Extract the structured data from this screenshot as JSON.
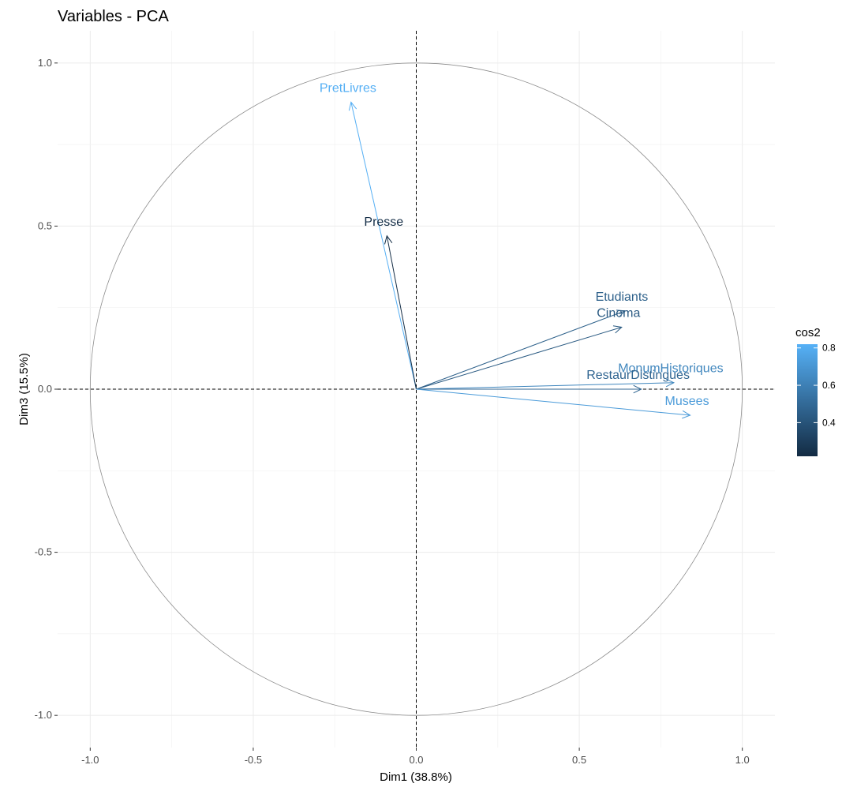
{
  "chart_data": {
    "type": "scatter",
    "title": "Variables - PCA",
    "xlabel": "Dim1 (38.8%)",
    "ylabel": "Dim3 (15.5%)",
    "xlim": [
      -1.1,
      1.1
    ],
    "ylim": [
      -1.1,
      1.1
    ],
    "x_ticks": [
      -1.0,
      -0.5,
      0.0,
      0.5,
      1.0
    ],
    "y_ticks": [
      -1.0,
      -0.5,
      0.0,
      0.5,
      1.0
    ],
    "x_tick_labels": [
      "-1.0",
      "-0.5",
      "0.0",
      "0.5",
      "1.0"
    ],
    "y_tick_labels": [
      "-1.0",
      "-0.5",
      "0.0",
      "0.5",
      "1.0"
    ],
    "grid": true,
    "unit_circle": true,
    "variables": [
      {
        "name": "PretLivres",
        "x": -0.2,
        "y": 0.88,
        "cos2": 0.81
      },
      {
        "name": "Presse",
        "x": -0.09,
        "y": 0.47,
        "cos2": 0.23
      },
      {
        "name": "Etudiants",
        "x": 0.64,
        "y": 0.24,
        "cos2": 0.46
      },
      {
        "name": "Cinema",
        "x": 0.63,
        "y": 0.19,
        "cos2": 0.43
      },
      {
        "name": "MonumHistoriques",
        "x": 0.79,
        "y": 0.02,
        "cos2": 0.63
      },
      {
        "name": "RestaurDistingues",
        "x": 0.69,
        "y": 0.0,
        "cos2": 0.48
      },
      {
        "name": "Musees",
        "x": 0.84,
        "y": -0.08,
        "cos2": 0.72
      }
    ],
    "legend": {
      "title": "cos2",
      "placement": "right",
      "range": [
        0.22,
        0.82
      ],
      "ticks": [
        0.4,
        0.6,
        0.8
      ],
      "tick_labels": [
        "0.4",
        "0.6",
        "0.8"
      ],
      "low_color": "#132B43",
      "high_color": "#56B1F7"
    }
  }
}
